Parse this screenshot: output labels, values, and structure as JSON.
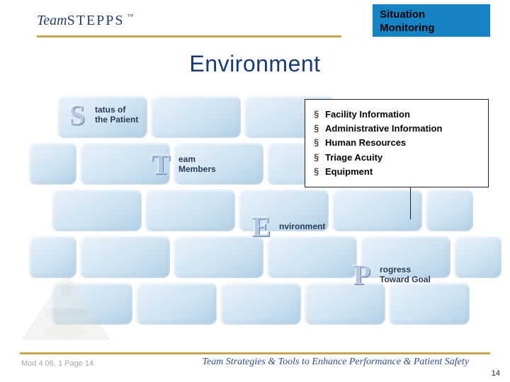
{
  "header": {
    "logo_text": "TeamSTEPPS",
    "logo_tm": "™",
    "badge_line1": "Situation",
    "badge_line2": "Monitoring"
  },
  "title": "Environment",
  "labels": {
    "s": {
      "letter": "S",
      "text": "tatus of\nthe Patient"
    },
    "t": {
      "letter": "T",
      "text": "eam\nMembers"
    },
    "e": {
      "letter": "E",
      "text": "nvironment"
    },
    "p": {
      "letter": "P",
      "text": "rogress\nToward Goal"
    }
  },
  "callout": {
    "items": [
      "Facility Information",
      "Administrative Information",
      "Human Resources",
      "Triage Acuity",
      "Equipment"
    ]
  },
  "footer": {
    "left": "Mod 4 06. 1   Page 14",
    "tagline": "Team Strategies & Tools to Enhance Performance & Patient Safety",
    "page_num": "14"
  },
  "colors": {
    "accent_blue": "#1683c4",
    "text_navy": "#1a3a77",
    "gold_rule": "#c7a74f",
    "ice_light": "#eaf3fb",
    "ice_dark": "#b1cfe6"
  }
}
